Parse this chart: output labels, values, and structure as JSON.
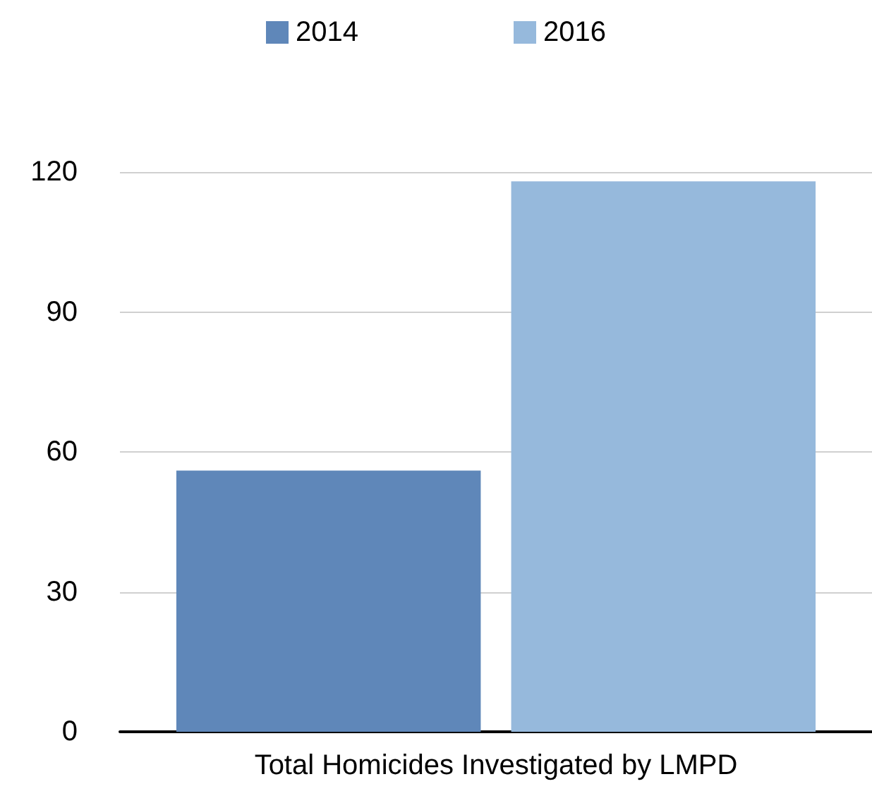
{
  "chart_data": {
    "type": "bar",
    "categories": [
      "Total Homicides Investigated by LMPD"
    ],
    "series": [
      {
        "name": "2014",
        "color": "#5f87b9",
        "values": [
          56
        ]
      },
      {
        "name": "2016",
        "color": "#96b9dc",
        "values": [
          118
        ]
      }
    ],
    "ylim": [
      0,
      120
    ],
    "yticks": [
      0,
      30,
      60,
      90,
      120
    ],
    "grid": "y",
    "legend": "top"
  }
}
